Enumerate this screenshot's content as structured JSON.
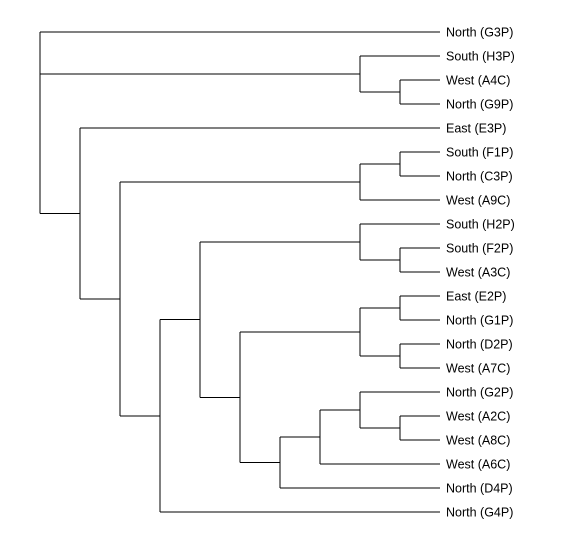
{
  "colors": {
    "line": "#000000",
    "background": "#ffffff",
    "text": "#000000"
  },
  "leaves": [
    "North (G3P)",
    "South (H3P)",
    "West (A4C)",
    "North (G9P)",
    "East (E3P)",
    "South (F1P)",
    "North (C3P)",
    "West (A9C)",
    "South (H2P)",
    "South (F2P)",
    "West (A3C)",
    "East (E2P)",
    "North (G1P)",
    "North (D2P)",
    "West (A7C)",
    "North (G2P)",
    "West (A2C)",
    "West (A8C)",
    "West (A6C)",
    "North (D4P)",
    "North (G4P)"
  ]
}
